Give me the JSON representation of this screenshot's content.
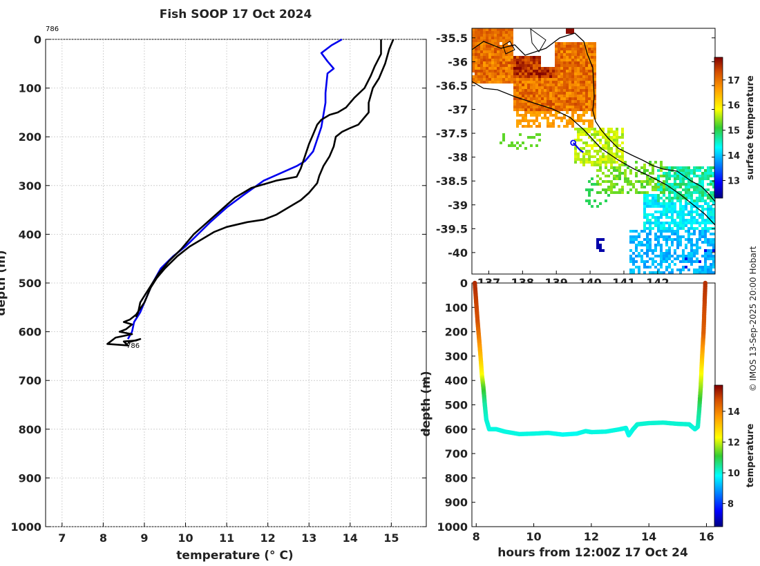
{
  "title": "Fish SOOP 17 Oct 2024",
  "credit": "© IMOS 13-Sep-2025 20:00 Hobart",
  "chart_data": [
    {
      "type": "line",
      "name": "temperature-depth profile",
      "xlabel": "temperature (° C)",
      "ylabel": "depth (m)",
      "xlim": [
        6.6,
        15.85
      ],
      "ylim": [
        0,
        1000
      ],
      "xticks": [
        "7",
        "8",
        "9",
        "10",
        "11",
        "12",
        "13",
        "14",
        "15"
      ],
      "yticks": [
        "0",
        "100",
        "200",
        "300",
        "400",
        "500",
        "600",
        "700",
        "800",
        "900",
        "1000"
      ],
      "annotations": [
        "786",
        "786"
      ],
      "series": [
        {
          "name": "profile 786 (blue)",
          "color": "#0000ee",
          "points": [
            [
              13.8,
              0
            ],
            [
              13.7,
              5
            ],
            [
              13.55,
              12
            ],
            [
              13.3,
              28
            ],
            [
              13.45,
              45
            ],
            [
              13.6,
              60
            ],
            [
              13.45,
              70
            ],
            [
              13.4,
              110
            ],
            [
              13.4,
              130
            ],
            [
              13.3,
              180
            ],
            [
              13.1,
              230
            ],
            [
              12.9,
              250
            ],
            [
              12.7,
              260
            ],
            [
              12.3,
              275
            ],
            [
              11.9,
              290
            ],
            [
              11.4,
              320
            ],
            [
              11.0,
              345
            ],
            [
              10.6,
              375
            ],
            [
              10.3,
              400
            ],
            [
              10.0,
              425
            ],
            [
              9.7,
              445
            ],
            [
              9.4,
              470
            ],
            [
              9.2,
              500
            ],
            [
              9.05,
              530
            ],
            [
              8.9,
              560
            ],
            [
              8.75,
              580
            ],
            [
              8.7,
              600
            ],
            [
              8.6,
              615
            ]
          ]
        },
        {
          "name": "upper bound (black)",
          "color": "#000000",
          "points": [
            [
              14.75,
              0
            ],
            [
              14.75,
              30
            ],
            [
              14.6,
              55
            ],
            [
              14.5,
              75
            ],
            [
              14.35,
              100
            ],
            [
              14.1,
              120
            ],
            [
              13.9,
              140
            ],
            [
              13.7,
              150
            ],
            [
              13.5,
              155
            ],
            [
              13.3,
              165
            ],
            [
              13.2,
              175
            ],
            [
              13.1,
              195
            ],
            [
              13.0,
              215
            ],
            [
              12.9,
              240
            ],
            [
              12.8,
              265
            ],
            [
              12.7,
              282
            ],
            [
              12.2,
              290
            ],
            [
              11.6,
              305
            ],
            [
              11.2,
              325
            ],
            [
              11.0,
              340
            ],
            [
              10.8,
              355
            ],
            [
              10.6,
              370
            ],
            [
              10.4,
              385
            ],
            [
              10.2,
              400
            ],
            [
              9.9,
              430
            ],
            [
              9.6,
              455
            ],
            [
              9.35,
              480
            ],
            [
              9.2,
              500
            ],
            [
              9.05,
              520
            ],
            [
              8.9,
              540
            ],
            [
              8.85,
              560
            ],
            [
              8.8,
              570
            ]
          ]
        },
        {
          "name": "lower bound (black)",
          "color": "#000000",
          "points": [
            [
              15.05,
              0
            ],
            [
              14.95,
              20
            ],
            [
              14.85,
              50
            ],
            [
              14.7,
              80
            ],
            [
              14.55,
              100
            ],
            [
              14.45,
              130
            ],
            [
              14.45,
              150
            ],
            [
              14.35,
              160
            ],
            [
              14.2,
              175
            ],
            [
              14.0,
              182
            ],
            [
              13.8,
              190
            ],
            [
              13.65,
              200
            ],
            [
              13.6,
              220
            ],
            [
              13.5,
              240
            ],
            [
              13.35,
              260
            ],
            [
              13.25,
              280
            ],
            [
              13.2,
              295
            ],
            [
              13.0,
              315
            ],
            [
              12.8,
              330
            ],
            [
              12.5,
              345
            ],
            [
              12.2,
              360
            ],
            [
              11.9,
              370
            ],
            [
              11.5,
              375
            ],
            [
              11.0,
              385
            ],
            [
              10.7,
              395
            ],
            [
              10.4,
              410
            ],
            [
              10.1,
              425
            ],
            [
              9.8,
              445
            ],
            [
              9.5,
              470
            ],
            [
              9.3,
              490
            ],
            [
              9.15,
              510
            ],
            [
              9.0,
              540
            ],
            [
              8.8,
              565
            ],
            [
              8.65,
              575
            ],
            [
              8.5,
              580
            ],
            [
              8.7,
              585
            ],
            [
              8.55,
              595
            ],
            [
              8.4,
              600
            ],
            [
              8.7,
              605
            ],
            [
              8.3,
              612
            ],
            [
              8.1,
              625
            ],
            [
              8.6,
              628
            ],
            [
              8.5,
              620
            ],
            [
              8.8,
              618
            ],
            [
              8.9,
              615
            ],
            [
              8.6,
              622
            ]
          ]
        }
      ]
    },
    {
      "type": "heatmap",
      "name": "surface temperature map",
      "xlim": [
        136.5,
        143.7
      ],
      "ylim": [
        -40.45,
        -35.3
      ],
      "xticks": [
        "137",
        "138",
        "139",
        "140",
        "141",
        "142"
      ],
      "yticks": [
        "-35.5",
        "-36",
        "-36.5",
        "-37",
        "-37.5",
        "-38",
        "-38.5",
        "-39",
        "-39.5",
        "-40"
      ],
      "colorbar_label": "surface temperature",
      "colorbar_range": [
        12.3,
        17.9
      ],
      "colorbar_ticks": [
        "13",
        "14",
        "15",
        "16",
        "17"
      ],
      "track": [
        [
          139.5,
          -37.7
        ],
        [
          139.7,
          -37.85
        ],
        [
          139.8,
          -37.9
        ]
      ]
    },
    {
      "type": "scatter",
      "name": "depth-time section",
      "xlabel": "hours from 12:00Z 17 Oct 24",
      "ylabel": "depth (m)",
      "xlim": [
        7.85,
        16.3
      ],
      "ylim": [
        0,
        1000
      ],
      "xticks": [
        "8",
        "10",
        "12",
        "14",
        "16"
      ],
      "yticks": [
        "0",
        "100",
        "200",
        "300",
        "400",
        "500",
        "600",
        "700",
        "800",
        "900",
        "1000"
      ],
      "colorbar_label": "temperature",
      "colorbar_range": [
        6.5,
        15.7
      ],
      "colorbar_ticks": [
        "8",
        "10",
        "12",
        "14"
      ],
      "points": [
        [
          7.95,
          0,
          15.2
        ],
        [
          8.0,
          80,
          14.9
        ],
        [
          8.05,
          160,
          14.7
        ],
        [
          8.1,
          230,
          14.0
        ],
        [
          8.15,
          300,
          13.2
        ],
        [
          8.2,
          380,
          12.3
        ],
        [
          8.25,
          430,
          11.3
        ],
        [
          8.3,
          500,
          10.4
        ],
        [
          8.35,
          560,
          10.1
        ],
        [
          8.45,
          600,
          10.0
        ],
        [
          8.7,
          600,
          10.0
        ],
        [
          9.0,
          610,
          10.0
        ],
        [
          9.5,
          620,
          10.0
        ],
        [
          10.0,
          618,
          10.0
        ],
        [
          10.5,
          615,
          10.0
        ],
        [
          11.0,
          622,
          9.9
        ],
        [
          11.5,
          618,
          9.9
        ],
        [
          11.8,
          608,
          10.0
        ],
        [
          12.0,
          612,
          10.0
        ],
        [
          12.5,
          610,
          10.0
        ],
        [
          13.0,
          600,
          10.0
        ],
        [
          13.2,
          595,
          10.0
        ],
        [
          13.3,
          625,
          9.9
        ],
        [
          13.45,
          600,
          10.0
        ],
        [
          13.6,
          580,
          10.1
        ],
        [
          14.0,
          575,
          10.1
        ],
        [
          14.5,
          573,
          10.1
        ],
        [
          15.0,
          578,
          10.1
        ],
        [
          15.4,
          580,
          10.1
        ],
        [
          15.6,
          600,
          10.0
        ],
        [
          15.7,
          590,
          10.1
        ],
        [
          15.75,
          520,
          10.5
        ],
        [
          15.8,
          430,
          11.6
        ],
        [
          15.83,
          350,
          12.5
        ],
        [
          15.86,
          280,
          13.4
        ],
        [
          15.9,
          200,
          14.5
        ],
        [
          15.93,
          100,
          14.8
        ],
        [
          15.96,
          0,
          15.1
        ]
      ]
    }
  ]
}
